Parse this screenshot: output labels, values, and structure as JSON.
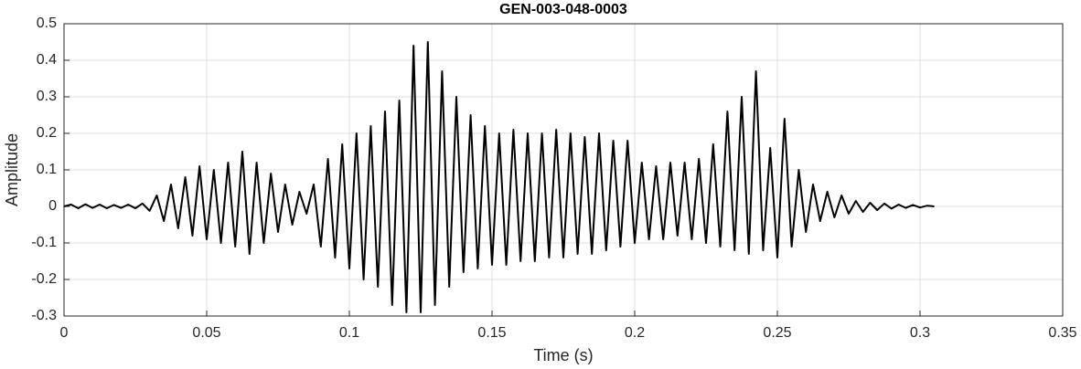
{
  "chart_data": {
    "type": "line",
    "title": "GEN-003-048-0003",
    "xlabel": "Time (s)",
    "ylabel": "Amplitude",
    "xlim": [
      0,
      0.35
    ],
    "ylim": [
      -0.3,
      0.5
    ],
    "xticks": [
      0,
      0.05,
      0.1,
      0.15,
      0.2,
      0.25,
      0.3,
      0.35
    ],
    "yticks": [
      -0.3,
      -0.2,
      -0.1,
      0,
      0.1,
      0.2,
      0.3,
      0.4,
      0.5
    ],
    "grid": true,
    "x": [
      0,
      0.0025,
      0.005,
      0.0075,
      0.01,
      0.0125,
      0.015,
      0.0175,
      0.02,
      0.0225,
      0.025,
      0.0275,
      0.03,
      0.0325,
      0.035,
      0.0375,
      0.04,
      0.0425,
      0.045,
      0.0475,
      0.05,
      0.0525,
      0.055,
      0.0575,
      0.06,
      0.0625,
      0.065,
      0.0675,
      0.07,
      0.0725,
      0.075,
      0.0775,
      0.08,
      0.0825,
      0.085,
      0.0875,
      0.09,
      0.0925,
      0.095,
      0.0975,
      0.1,
      0.1025,
      0.105,
      0.1075,
      0.11,
      0.1125,
      0.115,
      0.1175,
      0.12,
      0.1225,
      0.125,
      0.1275,
      0.13,
      0.1325,
      0.135,
      0.1375,
      0.14,
      0.1425,
      0.145,
      0.1475,
      0.15,
      0.1525,
      0.155,
      0.1575,
      0.16,
      0.1625,
      0.165,
      0.1675,
      0.17,
      0.1725,
      0.175,
      0.1775,
      0.18,
      0.1825,
      0.185,
      0.1875,
      0.19,
      0.1925,
      0.195,
      0.1975,
      0.2,
      0.2025,
      0.205,
      0.2075,
      0.21,
      0.2125,
      0.215,
      0.2175,
      0.22,
      0.2225,
      0.225,
      0.2275,
      0.23,
      0.2325,
      0.235,
      0.2375,
      0.24,
      0.2425,
      0.245,
      0.2475,
      0.25,
      0.2525,
      0.255,
      0.2575,
      0.26,
      0.2625,
      0.265,
      0.2675,
      0.27,
      0.2725,
      0.275,
      0.2775,
      0.28,
      0.2825,
      0.285,
      0.2875,
      0.29,
      0.2925,
      0.295,
      0.2975,
      0.3,
      0.3025,
      0.305
    ],
    "series": [
      {
        "color": "#000000",
        "values": [
          0,
          0.005,
          -0.005,
          0.006,
          -0.004,
          0.005,
          -0.005,
          0.004,
          -0.004,
          0.005,
          -0.005,
          0.008,
          -0.012,
          0.03,
          -0.04,
          0.06,
          -0.06,
          0.08,
          -0.08,
          0.11,
          -0.09,
          0.1,
          -0.1,
          0.12,
          -0.11,
          0.15,
          -0.13,
          0.12,
          -0.1,
          0.09,
          -0.07,
          0.06,
          -0.05,
          0.04,
          -0.02,
          0.06,
          -0.11,
          0.13,
          -0.14,
          0.17,
          -0.17,
          0.2,
          -0.2,
          0.22,
          -0.22,
          0.26,
          -0.27,
          0.29,
          -0.29,
          0.44,
          -0.29,
          0.45,
          -0.27,
          0.37,
          -0.22,
          0.3,
          -0.18,
          0.25,
          -0.17,
          0.22,
          -0.16,
          0.2,
          -0.16,
          0.21,
          -0.15,
          0.2,
          -0.15,
          0.2,
          -0.14,
          0.21,
          -0.14,
          0.2,
          -0.13,
          0.19,
          -0.13,
          0.2,
          -0.12,
          0.18,
          -0.11,
          0.18,
          -0.1,
          0.12,
          -0.09,
          0.11,
          -0.09,
          0.12,
          -0.08,
          0.12,
          -0.09,
          0.13,
          -0.1,
          0.17,
          -0.11,
          0.26,
          -0.12,
          0.3,
          -0.13,
          0.37,
          -0.12,
          0.16,
          -0.14,
          0.24,
          -0.11,
          0.1,
          -0.07,
          0.06,
          -0.04,
          0.04,
          -0.03,
          0.03,
          -0.02,
          0.015,
          -0.015,
          0.01,
          -0.01,
          0.008,
          -0.006,
          0.005,
          -0.004,
          0.004,
          -0.003,
          0.002,
          0
        ]
      }
    ]
  }
}
